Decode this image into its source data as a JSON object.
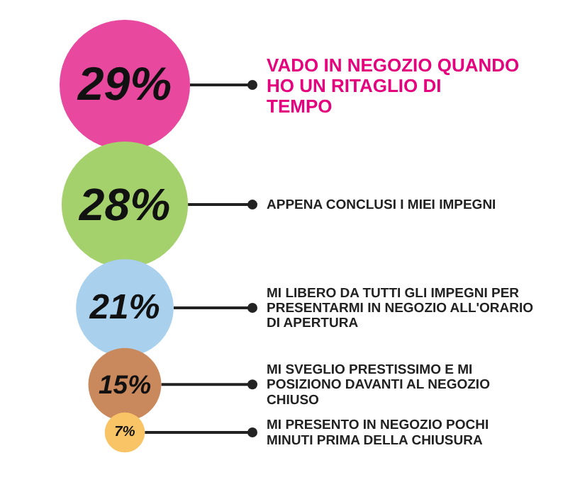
{
  "chart_data": {
    "type": "other",
    "categories": [
      "VADO IN NEGOZIO QUANDO HO UN RITAGLIO DI TEMPO",
      "APPENA CONCLUSI I MIEI IMPEGNI",
      "MI LIBERO DA TUTTI GLI IMPEGNI PER PRESENTARMI IN NEGOZIO ALL'ORARIO DI APERTURA",
      "MI SVEGLIO PRESTISSIMO E MI POSIZIONO DAVANTI AL NEGOZIO CHIUSO",
      "MI PRESENTO IN NEGOZIO POCHI MINUTI PRIMA DELLA CHIUSURA"
    ],
    "values": [
      29,
      28,
      21,
      15,
      7
    ],
    "colors": [
      "#e8499e",
      "#a5d16c",
      "#a9d0ec",
      "#c9895c",
      "#f8c466"
    ],
    "value_labels": [
      "29%",
      "28%",
      "21%",
      "15%",
      "7%"
    ]
  }
}
